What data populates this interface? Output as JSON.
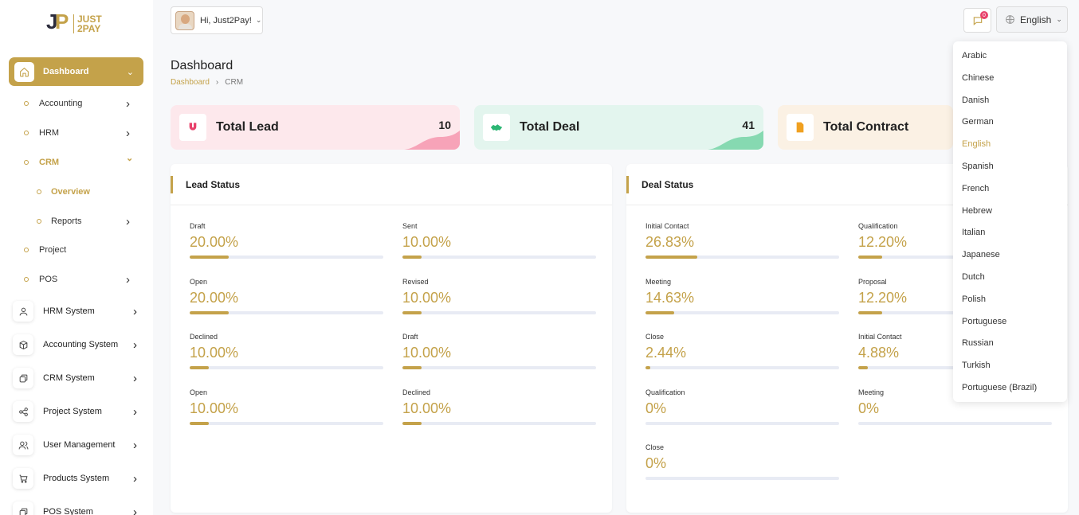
{
  "brand": {
    "line1": "JUST",
    "line2": "2PAY"
  },
  "sidebar": {
    "active": {
      "label": "Dashboard"
    },
    "sub_items": [
      {
        "label": "Accounting",
        "has_chevron": true
      },
      {
        "label": "HRM",
        "has_chevron": true
      },
      {
        "label": "CRM",
        "has_chevron": true,
        "expanded": true
      },
      {
        "label": "Overview",
        "nested": true,
        "active": true
      },
      {
        "label": "Reports",
        "nested": true,
        "has_chevron": true
      },
      {
        "label": "Project",
        "has_chevron": false
      },
      {
        "label": "POS",
        "has_chevron": true
      }
    ],
    "systems": [
      {
        "label": "HRM System",
        "icon": "user-icon"
      },
      {
        "label": "Accounting System",
        "icon": "box-icon"
      },
      {
        "label": "CRM System",
        "icon": "layers-icon"
      },
      {
        "label": "Project System",
        "icon": "share-icon"
      },
      {
        "label": "User Management",
        "icon": "users-icon"
      },
      {
        "label": "Products System",
        "icon": "cart-icon"
      },
      {
        "label": "POS System",
        "icon": "layers-icon"
      }
    ]
  },
  "topbar": {
    "greeting": "Hi, Just2Pay!",
    "notification_count": "0",
    "language": "English"
  },
  "page": {
    "title": "Dashboard",
    "breadcrumb_home": "Dashboard",
    "breadcrumb_current": "CRM"
  },
  "stats": [
    {
      "label": "Total Lead",
      "value": "10",
      "bg": "#fde8ec",
      "icon_color": "#e8416b",
      "wave": "#f7a3b8",
      "icon": "magnet-icon"
    },
    {
      "label": "Total Deal",
      "value": "41",
      "bg": "#e3f5ee",
      "icon_color": "#2bb673",
      "wave": "#86d9b1",
      "icon": "handshake-icon"
    },
    {
      "label": "Total Contract",
      "value": "",
      "bg": "#fbf1e4",
      "icon_color": "#f0a020",
      "wave": "#f6cf97",
      "icon": "document-icon"
    }
  ],
  "lead_status": {
    "title": "Lead Status",
    "items": [
      {
        "label": "Draft",
        "value": "20.00%",
        "pct": 20
      },
      {
        "label": "Sent",
        "value": "10.00%",
        "pct": 10
      },
      {
        "label": "Open",
        "value": "20.00%",
        "pct": 20
      },
      {
        "label": "Revised",
        "value": "10.00%",
        "pct": 10
      },
      {
        "label": "Declined",
        "value": "10.00%",
        "pct": 10
      },
      {
        "label": "Draft",
        "value": "10.00%",
        "pct": 10
      },
      {
        "label": "Open",
        "value": "10.00%",
        "pct": 10
      },
      {
        "label": "Declined",
        "value": "10.00%",
        "pct": 10
      }
    ]
  },
  "deal_status": {
    "title": "Deal Status",
    "items": [
      {
        "label": "Initial Contact",
        "value": "26.83%",
        "pct": 26.83
      },
      {
        "label": "Qualification",
        "value": "12.20%",
        "pct": 12.2
      },
      {
        "label": "Meeting",
        "value": "14.63%",
        "pct": 14.63
      },
      {
        "label": "Proposal",
        "value": "12.20%",
        "pct": 12.2
      },
      {
        "label": "Close",
        "value": "2.44%",
        "pct": 2.44
      },
      {
        "label": "Initial Contact",
        "value": "4.88%",
        "pct": 4.88
      },
      {
        "label": "Qualification",
        "value": "0%",
        "pct": 0
      },
      {
        "label": "Meeting",
        "value": "0%",
        "pct": 0
      },
      {
        "label": "Close",
        "value": "0%",
        "pct": 0
      }
    ]
  },
  "languages": {
    "selected": "English",
    "options": [
      "Arabic",
      "Chinese",
      "Danish",
      "German",
      "English",
      "Spanish",
      "French",
      "Hebrew",
      "Italian",
      "Japanese",
      "Dutch",
      "Polish",
      "Portuguese",
      "Russian",
      "Turkish",
      "Portuguese (Brazil)"
    ]
  },
  "colors": {
    "accent": "#c4a24a"
  }
}
